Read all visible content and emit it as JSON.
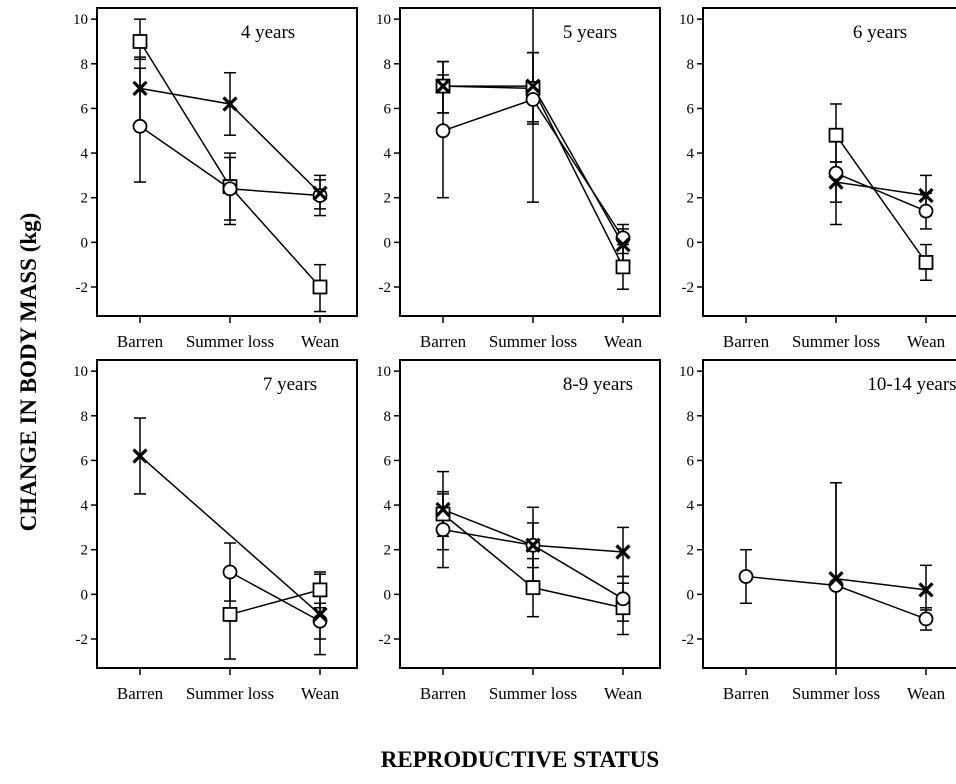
{
  "figure": {
    "ylabel": "CHANGE IN BODY MASS (kg)",
    "xlabel": "REPRODUCTIVE STATUS"
  },
  "chart_data": [
    {
      "type": "line",
      "title": "4 years",
      "categories": [
        "Barren",
        "Summer loss",
        "Wean"
      ],
      "yticks": [
        -2,
        0,
        2,
        4,
        6,
        8,
        10
      ],
      "ylim": [
        -3.3,
        10.5
      ],
      "series": [
        {
          "marker": "square",
          "values": [
            9.0,
            2.5,
            -2.0
          ],
          "err_low": [
            8.2,
            1.0,
            -3.1
          ],
          "err_high": [
            10.0,
            4.0,
            -1.0
          ]
        },
        {
          "marker": "circle",
          "values": [
            5.2,
            2.4,
            2.1
          ],
          "err_low": [
            2.7,
            0.8,
            1.2
          ],
          "err_high": [
            7.8,
            3.8,
            2.8
          ]
        },
        {
          "marker": "x",
          "values": [
            6.9,
            6.2,
            2.2
          ],
          "err_low": [
            5.3,
            4.8,
            1.5
          ],
          "err_high": [
            8.3,
            7.6,
            3.0
          ]
        }
      ]
    },
    {
      "type": "line",
      "title": "5 years",
      "categories": [
        "Barren",
        "Summer loss",
        "Wean"
      ],
      "yticks": [
        -2,
        0,
        2,
        4,
        6,
        8,
        10
      ],
      "ylim": [
        -3.3,
        10.5
      ],
      "series": [
        {
          "marker": "square",
          "values": [
            7.0,
            6.9,
            -1.1
          ],
          "err_low": [
            5.8,
            5.3,
            -2.1
          ],
          "err_high": [
            8.1,
            8.5,
            -0.1
          ]
        },
        {
          "marker": "circle",
          "values": [
            5.0,
            6.4,
            0.2
          ],
          "err_low": [
            2.0,
            1.8,
            -0.5
          ],
          "err_high": [
            7.5,
            10.5,
            0.8
          ]
        },
        {
          "marker": "x",
          "values": [
            7.0,
            7.0,
            -0.1
          ],
          "err_low": [
            5.8,
            5.4,
            -0.8
          ],
          "err_high": [
            8.1,
            8.5,
            0.6
          ]
        }
      ]
    },
    {
      "type": "line",
      "title": "6 years",
      "categories": [
        "Barren",
        "Summer loss",
        "Wean"
      ],
      "yticks": [
        -2,
        0,
        2,
        4,
        6,
        8,
        10
      ],
      "ylim": [
        -3.3,
        10.5
      ],
      "series": [
        {
          "marker": "square",
          "values": [
            null,
            4.8,
            -0.9
          ],
          "err_low": [
            null,
            3.6,
            -1.7
          ],
          "err_high": [
            null,
            6.2,
            -0.1
          ]
        },
        {
          "marker": "circle",
          "values": [
            null,
            3.1,
            1.4
          ],
          "err_low": [
            null,
            0.8,
            0.6
          ],
          "err_high": [
            null,
            5.0,
            2.2
          ]
        },
        {
          "marker": "x",
          "values": [
            null,
            2.7,
            2.1
          ],
          "err_low": [
            null,
            1.8,
            1.2
          ],
          "err_high": [
            null,
            3.6,
            3.0
          ]
        }
      ]
    },
    {
      "type": "line",
      "title": "7 years",
      "categories": [
        "Barren",
        "Summer loss",
        "Wean"
      ],
      "yticks": [
        -2,
        0,
        2,
        4,
        6,
        8,
        10
      ],
      "ylim": [
        -3.3,
        10.5
      ],
      "series": [
        {
          "marker": "square",
          "values": [
            null,
            -0.9,
            0.2
          ],
          "err_low": [
            null,
            -2.9,
            -0.6
          ],
          "err_high": [
            null,
            1.1,
            1.0
          ]
        },
        {
          "marker": "circle",
          "values": [
            null,
            1.0,
            -1.2
          ],
          "err_low": [
            null,
            -0.3,
            -2.0
          ],
          "err_high": [
            null,
            2.3,
            -0.4
          ]
        },
        {
          "marker": "x",
          "values": [
            6.2,
            null,
            -0.9
          ],
          "err_low": [
            4.5,
            null,
            -2.7
          ],
          "err_high": [
            7.9,
            null,
            0.9
          ]
        }
      ]
    },
    {
      "type": "line",
      "title": "8-9 years",
      "categories": [
        "Barren",
        "Summer loss",
        "Wean"
      ],
      "yticks": [
        -2,
        0,
        2,
        4,
        6,
        8,
        10
      ],
      "ylim": [
        -3.3,
        10.5
      ],
      "series": [
        {
          "marker": "square",
          "values": [
            3.6,
            0.3,
            -0.6
          ],
          "err_low": [
            2.6,
            -1.0,
            -1.8
          ],
          "err_high": [
            4.6,
            1.6,
            0.5
          ]
        },
        {
          "marker": "circle",
          "values": [
            2.9,
            2.2,
            -0.2
          ],
          "err_low": [
            1.2,
            0.6,
            -1.2
          ],
          "err_high": [
            4.5,
            3.9,
            0.8
          ]
        },
        {
          "marker": "x",
          "values": [
            3.8,
            2.2,
            1.9
          ],
          "err_low": [
            2.0,
            1.2,
            0.8
          ],
          "err_high": [
            5.5,
            3.2,
            3.0
          ]
        }
      ]
    },
    {
      "type": "line",
      "title": "10-14 years",
      "categories": [
        "Barren",
        "Summer loss",
        "Wean"
      ],
      "yticks": [
        -2,
        0,
        2,
        4,
        6,
        8,
        10
      ],
      "ylim": [
        -3.3,
        10.5
      ],
      "series": [
        {
          "marker": "circle",
          "values": [
            0.8,
            0.4,
            -1.1
          ],
          "err_low": [
            -0.4,
            -3.3,
            -1.6
          ],
          "err_high": [
            2.0,
            5.0,
            -0.6
          ]
        },
        {
          "marker": "x",
          "values": [
            null,
            0.7,
            0.2
          ],
          "err_low": [
            null,
            -3.3,
            -0.7
          ],
          "err_high": [
            null,
            5.0,
            1.3
          ]
        }
      ]
    }
  ]
}
